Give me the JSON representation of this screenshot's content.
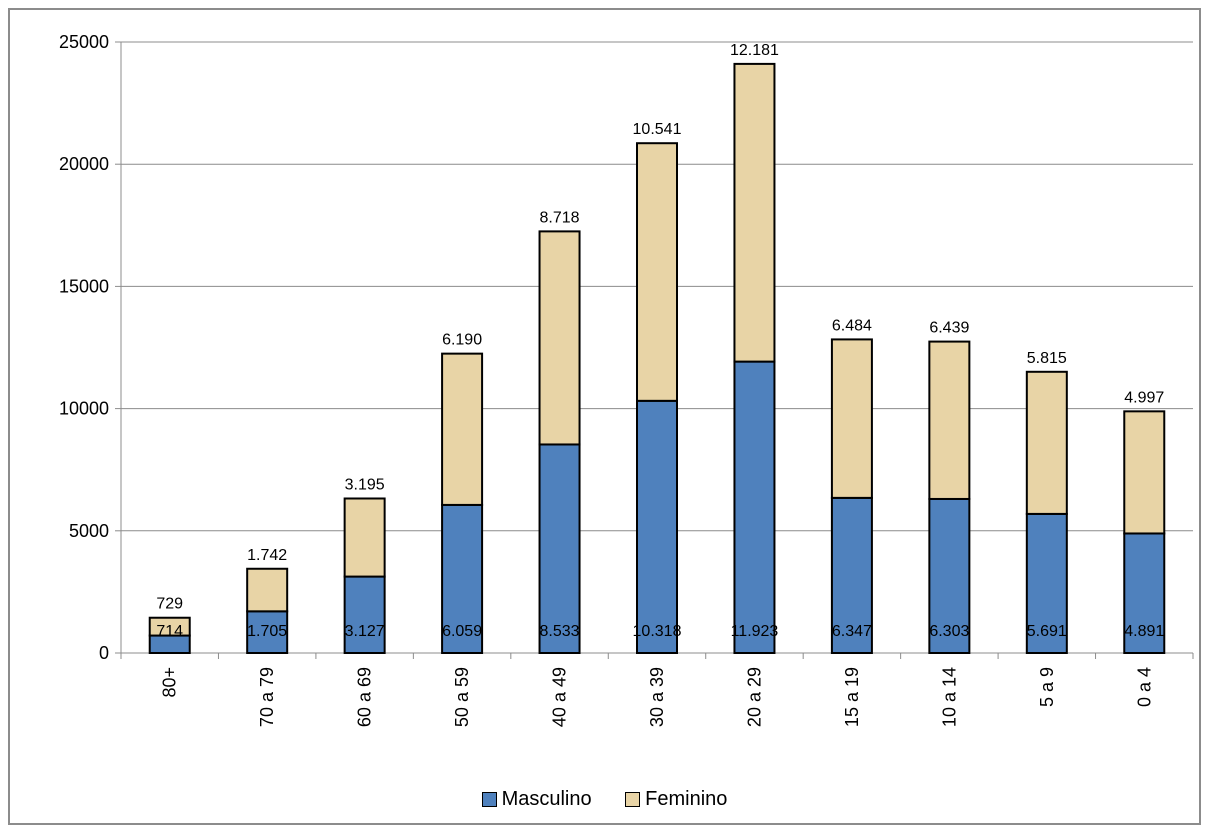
{
  "chart_data": {
    "type": "bar",
    "stacked": true,
    "categories": [
      "80+",
      "70 a 79",
      "60 a 69",
      "50 a 59",
      "40 a 49",
      "30 a 39",
      "20 a 29",
      "15 a 19",
      "10 a 14",
      "5 a 9",
      "0 a 4"
    ],
    "series": [
      {
        "name": "Masculino",
        "color": "#4f81bd",
        "values": [
          714,
          1705,
          3127,
          6059,
          8533,
          10318,
          11923,
          6347,
          6303,
          5691,
          4891
        ],
        "labels": [
          "714",
          "1.705",
          "3.127",
          "6.059",
          "8.533",
          "10.318",
          "11.923",
          "6.347",
          "6.303",
          "5.691",
          "4.891"
        ]
      },
      {
        "name": "Feminino",
        "color": "#e8d4a6",
        "values": [
          729,
          1742,
          3195,
          6190,
          8718,
          10541,
          12181,
          6484,
          6439,
          5815,
          4997
        ],
        "labels": [
          "729",
          "1.742",
          "3.195",
          "6.190",
          "8.718",
          "10.541",
          "12.181",
          "6.484",
          "6.439",
          "5.815",
          "4.997"
        ]
      }
    ],
    "yticks": [
      "0",
      "5000",
      "10000",
      "15000",
      "20000",
      "25000"
    ],
    "ylim": [
      0,
      25000
    ],
    "grid": true,
    "legend_position": "bottom"
  }
}
